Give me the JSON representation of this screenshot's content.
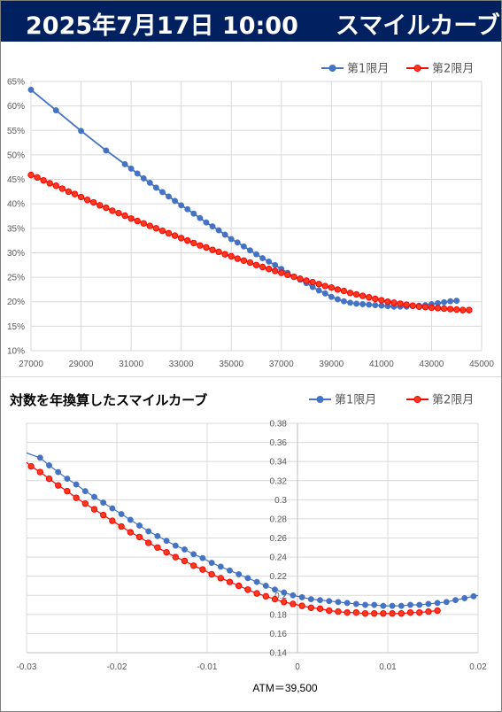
{
  "header": {
    "date": "2025年7月17日 10:00",
    "title": "スマイルカーブ"
  },
  "colors": {
    "banner": "#002060",
    "series1": "#4472c4",
    "series2": "#ff0000",
    "series2_fill": "#ff3b1f",
    "grid": "#d9d9d9"
  },
  "chart_data": [
    {
      "type": "line",
      "title": "",
      "xlabel": "",
      "ylabel": "",
      "xlim": [
        27000,
        45000
      ],
      "ylim": [
        0.1,
        0.65
      ],
      "x_ticks": [
        27000,
        29000,
        31000,
        33000,
        35000,
        37000,
        39000,
        41000,
        43000,
        45000
      ],
      "x_tick_labels": [
        "27000",
        "29000",
        "31000",
        "33000",
        "35000",
        "37000",
        "39000",
        "41000",
        "43000",
        "45000"
      ],
      "y_ticks": [
        0.1,
        0.15,
        0.2,
        0.25,
        0.3,
        0.35,
        0.4,
        0.45,
        0.5,
        0.55,
        0.6,
        0.65
      ],
      "y_tick_labels": [
        "10%",
        "15%",
        "20%",
        "25%",
        "30%",
        "35%",
        "40%",
        "45%",
        "50%",
        "55%",
        "60%",
        "65%"
      ],
      "grid": true,
      "legend": "top-right",
      "series": [
        {
          "name": "第1限月",
          "x": [
            27000,
            28000,
            29000,
            30000,
            30750,
            31000,
            31250,
            31500,
            31750,
            32000,
            32250,
            32500,
            32750,
            33000,
            33250,
            33500,
            33750,
            34000,
            34250,
            34500,
            34750,
            35000,
            35250,
            35500,
            35750,
            36000,
            36250,
            36500,
            36750,
            37000,
            37250,
            37500,
            37750,
            38000,
            38250,
            38500,
            38750,
            39000,
            39250,
            39500,
            39750,
            40000,
            40250,
            40500,
            40750,
            41000,
            41250,
            41500,
            41750,
            42000,
            42250,
            42500,
            42750,
            43000,
            43250,
            43500,
            43750,
            44000
          ],
          "y": [
            0.633,
            0.591,
            0.549,
            0.509,
            0.481,
            0.472,
            0.462,
            0.452,
            0.443,
            0.433,
            0.424,
            0.415,
            0.406,
            0.397,
            0.389,
            0.38,
            0.371,
            0.362,
            0.354,
            0.346,
            0.337,
            0.328,
            0.321,
            0.313,
            0.305,
            0.297,
            0.289,
            0.282,
            0.275,
            0.267,
            0.259,
            0.251,
            0.245,
            0.238,
            0.23,
            0.223,
            0.217,
            0.21,
            0.205,
            0.201,
            0.198,
            0.196,
            0.195,
            0.194,
            0.193,
            0.192,
            0.191,
            0.19,
            0.19,
            0.19,
            0.191,
            0.192,
            0.193,
            0.195,
            0.197,
            0.199,
            0.201,
            0.202
          ]
        },
        {
          "name": "第2限月",
          "x": [
            27000,
            27250,
            27500,
            27750,
            28000,
            28250,
            28500,
            28750,
            29000,
            29250,
            29500,
            29750,
            30000,
            30250,
            30500,
            30750,
            31000,
            31250,
            31500,
            31750,
            32000,
            32250,
            32500,
            32750,
            33000,
            33250,
            33500,
            33750,
            34000,
            34250,
            34500,
            34750,
            35000,
            35250,
            35500,
            35750,
            36000,
            36250,
            36500,
            36750,
            37000,
            37250,
            37500,
            37750,
            38000,
            38250,
            38500,
            38750,
            39000,
            39250,
            39500,
            39750,
            40000,
            40250,
            40500,
            40750,
            41000,
            41250,
            41500,
            41750,
            42000,
            42250,
            42500,
            42750,
            43000,
            43250,
            43500,
            43750,
            44000,
            44250,
            44500
          ],
          "y": [
            0.459,
            0.454,
            0.448,
            0.442,
            0.437,
            0.431,
            0.425,
            0.42,
            0.414,
            0.408,
            0.403,
            0.397,
            0.392,
            0.386,
            0.381,
            0.376,
            0.37,
            0.365,
            0.36,
            0.355,
            0.35,
            0.345,
            0.34,
            0.335,
            0.33,
            0.325,
            0.32,
            0.315,
            0.311,
            0.306,
            0.302,
            0.297,
            0.293,
            0.288,
            0.284,
            0.28,
            0.275,
            0.271,
            0.267,
            0.263,
            0.259,
            0.255,
            0.251,
            0.247,
            0.243,
            0.24,
            0.236,
            0.232,
            0.229,
            0.225,
            0.222,
            0.218,
            0.215,
            0.212,
            0.209,
            0.206,
            0.203,
            0.2,
            0.198,
            0.196,
            0.194,
            0.192,
            0.19,
            0.189,
            0.188,
            0.187,
            0.186,
            0.185,
            0.184,
            0.183,
            0.183
          ]
        }
      ]
    },
    {
      "type": "line",
      "title": "対数を年換算したスマイルカーブ",
      "xlabel": "ATM＝39,500",
      "ylabel": "",
      "xlim": [
        -0.03,
        0.02
      ],
      "ylim": [
        0.14,
        0.38
      ],
      "x_ticks": [
        -0.03,
        -0.02,
        -0.01,
        0,
        0.01,
        0.02
      ],
      "x_tick_labels": [
        "-0.03",
        "-0.02",
        "-0.01",
        "0",
        "0.01",
        "0.02"
      ],
      "y_ticks": [
        0.14,
        0.16,
        0.18,
        0.2,
        0.22,
        0.24,
        0.26,
        0.28,
        0.3,
        0.32,
        0.34,
        0.36,
        0.38
      ],
      "y_tick_labels": [
        "0.14",
        "0.16",
        "0.18",
        "0.2",
        "0.22",
        "0.24",
        "0.26",
        "0.28",
        "0.3",
        "0.32",
        "0.34",
        "0.36",
        "0.38"
      ],
      "grid": true,
      "legend": "top-right",
      "series": [
        {
          "name": "第1限月",
          "x": [
            -0.0285,
            -0.0275,
            -0.0265,
            -0.0255,
            -0.0245,
            -0.0235,
            -0.0225,
            -0.0215,
            -0.0205,
            -0.0195,
            -0.0185,
            -0.0175,
            -0.0165,
            -0.0155,
            -0.0145,
            -0.0135,
            -0.0125,
            -0.0115,
            -0.0105,
            -0.0095,
            -0.0085,
            -0.0075,
            -0.0065,
            -0.0055,
            -0.0045,
            -0.0035,
            -0.0025,
            -0.0015,
            -0.0005,
            0.0005,
            0.0015,
            0.0025,
            0.0035,
            0.0045,
            0.0055,
            0.0065,
            0.0075,
            0.0085,
            0.0095,
            0.0105,
            0.0115,
            0.0125,
            0.0135,
            0.0145,
            0.0155,
            0.0165,
            0.0175,
            0.0185,
            0.0195
          ],
          "y": [
            0.344,
            0.336,
            0.329,
            0.322,
            0.316,
            0.309,
            0.303,
            0.297,
            0.291,
            0.285,
            0.279,
            0.273,
            0.267,
            0.262,
            0.257,
            0.252,
            0.248,
            0.243,
            0.239,
            0.234,
            0.23,
            0.226,
            0.222,
            0.218,
            0.214,
            0.21,
            0.206,
            0.203,
            0.2,
            0.198,
            0.196,
            0.195,
            0.194,
            0.193,
            0.192,
            0.191,
            0.19,
            0.19,
            0.189,
            0.189,
            0.189,
            0.19,
            0.19,
            0.191,
            0.192,
            0.193,
            0.195,
            0.197,
            0.199
          ]
        },
        {
          "name": "第2限月",
          "x": [
            -0.0295,
            -0.0285,
            -0.0275,
            -0.0265,
            -0.0255,
            -0.0245,
            -0.0235,
            -0.0225,
            -0.0215,
            -0.0205,
            -0.0195,
            -0.0185,
            -0.0175,
            -0.0165,
            -0.0155,
            -0.0145,
            -0.0135,
            -0.0125,
            -0.0115,
            -0.0105,
            -0.0095,
            -0.0085,
            -0.0075,
            -0.0065,
            -0.0055,
            -0.0045,
            -0.0035,
            -0.0025,
            -0.0015,
            -0.0005,
            0.0005,
            0.0015,
            0.0025,
            0.0035,
            0.0045,
            0.0055,
            0.0065,
            0.0075,
            0.0085,
            0.0095,
            0.0105,
            0.0115,
            0.0125,
            0.0135,
            0.0145,
            0.0155
          ],
          "y": [
            0.335,
            0.329,
            0.322,
            0.315,
            0.309,
            0.302,
            0.296,
            0.29,
            0.284,
            0.278,
            0.272,
            0.266,
            0.261,
            0.255,
            0.25,
            0.245,
            0.24,
            0.236,
            0.231,
            0.227,
            0.222,
            0.218,
            0.214,
            0.21,
            0.206,
            0.202,
            0.199,
            0.196,
            0.193,
            0.191,
            0.189,
            0.187,
            0.186,
            0.184,
            0.183,
            0.182,
            0.182,
            0.181,
            0.181,
            0.181,
            0.181,
            0.181,
            0.182,
            0.182,
            0.183,
            0.184
          ]
        }
      ]
    }
  ]
}
